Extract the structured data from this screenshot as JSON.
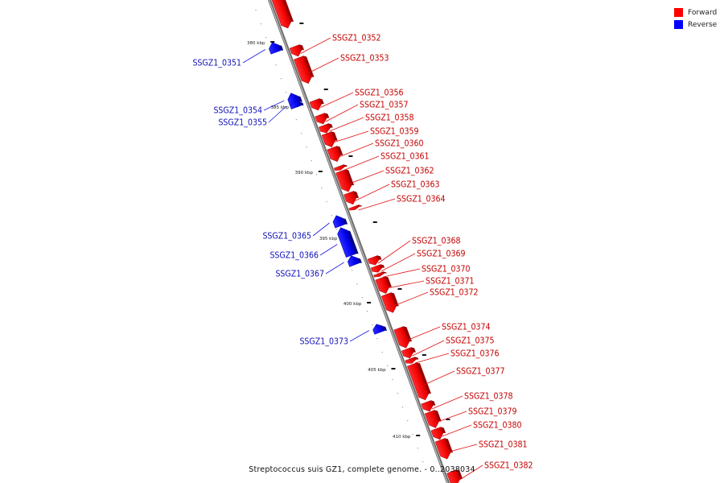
{
  "legend": {
    "forward": {
      "label": "Forward",
      "color": "#ff0000"
    },
    "reverse": {
      "label": "Reverse",
      "color": "#0000ff"
    }
  },
  "caption": "Streptococcus suis GZ1, complete genome. - 0..2038034",
  "ticks": [
    "380 kbp",
    "385 kbp",
    "390 kbp",
    "395 kbp",
    "400 kbp",
    "405 kbp",
    "410 kbp"
  ],
  "genes": [
    {
      "name": "",
      "strand": "forward"
    },
    {
      "name": "SSGZ1_0351",
      "strand": "reverse"
    },
    {
      "name": "SSGZ1_0352",
      "strand": "forward"
    },
    {
      "name": "SSGZ1_0353",
      "strand": "forward"
    },
    {
      "name": "SSGZ1_0354",
      "strand": "reverse"
    },
    {
      "name": "SSGZ1_0355",
      "strand": "reverse"
    },
    {
      "name": "SSGZ1_0356",
      "strand": "forward"
    },
    {
      "name": "SSGZ1_0357",
      "strand": "forward"
    },
    {
      "name": "SSGZ1_0358",
      "strand": "forward"
    },
    {
      "name": "SSGZ1_0359",
      "strand": "forward"
    },
    {
      "name": "SSGZ1_0360",
      "strand": "forward"
    },
    {
      "name": "SSGZ1_0361",
      "strand": "forward"
    },
    {
      "name": "SSGZ1_0362",
      "strand": "forward"
    },
    {
      "name": "SSGZ1_0363",
      "strand": "forward"
    },
    {
      "name": "SSGZ1_0364",
      "strand": "forward"
    },
    {
      "name": "SSGZ1_0365",
      "strand": "reverse"
    },
    {
      "name": "SSGZ1_0366",
      "strand": "reverse"
    },
    {
      "name": "SSGZ1_0367",
      "strand": "reverse"
    },
    {
      "name": "SSGZ1_0368",
      "strand": "forward"
    },
    {
      "name": "SSGZ1_0369",
      "strand": "forward"
    },
    {
      "name": "SSGZ1_0370",
      "strand": "forward"
    },
    {
      "name": "SSGZ1_0371",
      "strand": "forward"
    },
    {
      "name": "SSGZ1_0372",
      "strand": "forward"
    },
    {
      "name": "SSGZ1_0373",
      "strand": "reverse"
    },
    {
      "name": "SSGZ1_0374",
      "strand": "forward"
    },
    {
      "name": "SSGZ1_0375",
      "strand": "forward"
    },
    {
      "name": "SSGZ1_0376",
      "strand": "forward"
    },
    {
      "name": "SSGZ1_0377",
      "strand": "forward"
    },
    {
      "name": "SSGZ1_0378",
      "strand": "forward"
    },
    {
      "name": "SSGZ1_0379",
      "strand": "forward"
    },
    {
      "name": "SSGZ1_0380",
      "strand": "forward"
    },
    {
      "name": "SSGZ1_0381",
      "strand": "forward"
    },
    {
      "name": "SSGZ1_0382",
      "strand": "forward"
    }
  ]
}
